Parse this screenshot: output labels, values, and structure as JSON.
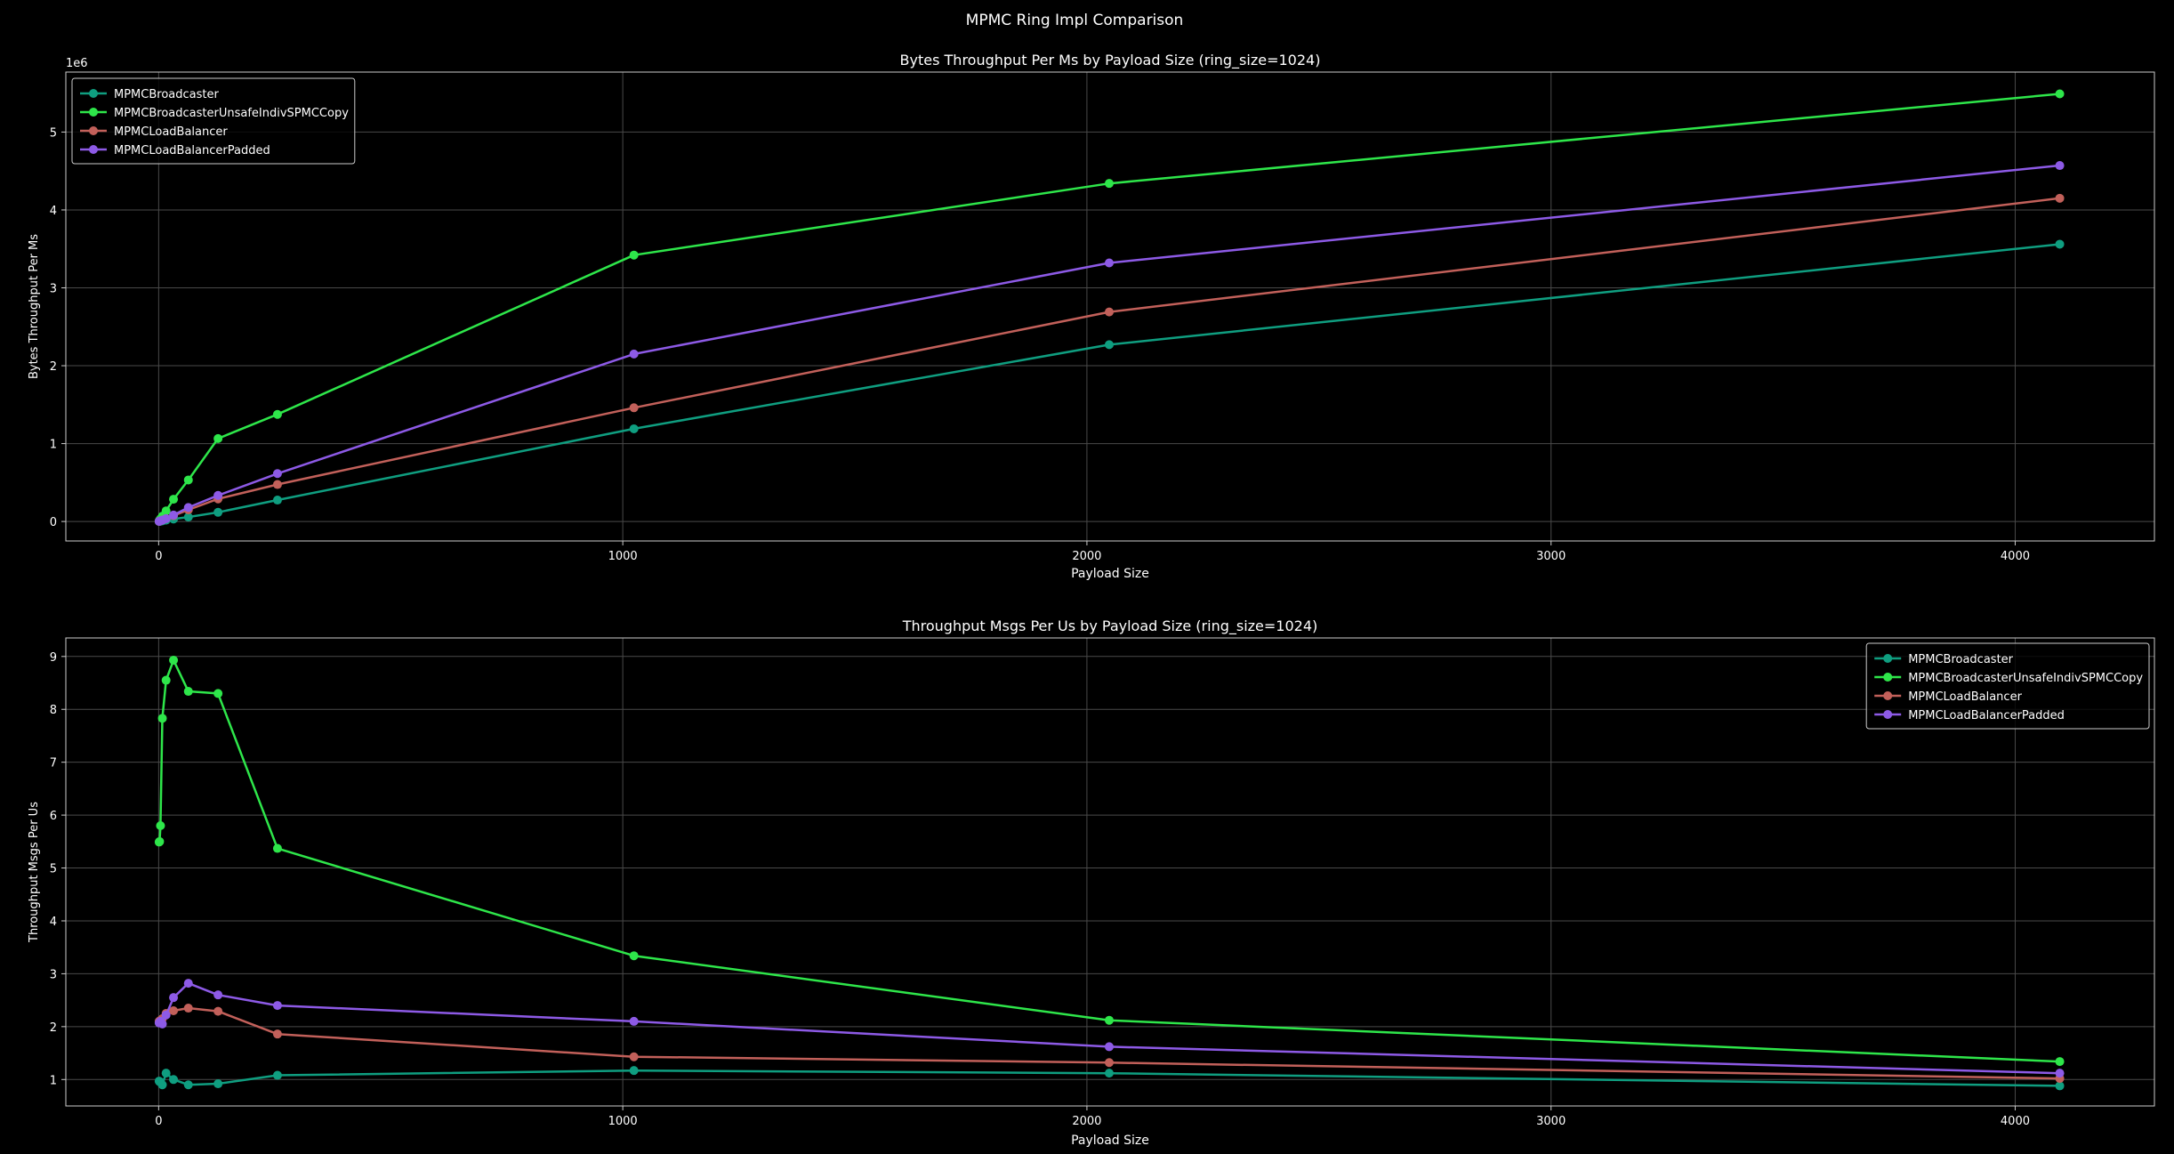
{
  "suptitle": "MPMC Ring Impl Comparison",
  "chart_data": [
    {
      "type": "line",
      "title": "Bytes Throughput Per Ms by Payload Size (ring_size=1024)",
      "xlabel": "Payload Size",
      "ylabel": "Bytes Throughput Per Ms",
      "y_offset_label": "1e6",
      "xlim": [
        -200,
        4300
      ],
      "ylim": [
        -0.25,
        5.77
      ],
      "xticks": [
        0,
        1000,
        2000,
        3000,
        4000
      ],
      "yticks": [
        0,
        1,
        2,
        3,
        4,
        5
      ],
      "grid": true,
      "legend_position": "top-left",
      "x": [
        1,
        2,
        4,
        8,
        16,
        32,
        64,
        128,
        256,
        1024,
        2048,
        4096
      ],
      "series": [
        {
          "name": "MPMCBroadcaster",
          "color": "#0f9e80",
          "values": [
            0.001,
            0.002,
            0.004,
            0.008,
            0.017,
            0.032,
            0.057,
            0.118,
            0.275,
            1.19,
            2.27,
            3.56
          ]
        },
        {
          "name": "MPMCBroadcasterUnsafeIndivSPMCCopy",
          "color": "#2ee64a",
          "values": [
            0.006,
            0.016,
            0.034,
            0.068,
            0.136,
            0.286,
            0.533,
            1.065,
            1.375,
            3.42,
            4.34,
            5.49
          ]
        },
        {
          "name": "MPMCLoadBalancer",
          "color": "#c2605a",
          "values": [
            0.002,
            0.004,
            0.009,
            0.018,
            0.037,
            0.074,
            0.15,
            0.29,
            0.475,
            1.46,
            2.69,
            4.15
          ]
        },
        {
          "name": "MPMCLoadBalancerPadded",
          "color": "#8d5ae6",
          "values": [
            0.002,
            0.004,
            0.009,
            0.018,
            0.037,
            0.082,
            0.18,
            0.335,
            0.615,
            2.15,
            3.32,
            4.57
          ]
        }
      ]
    },
    {
      "type": "line",
      "title": "Throughput Msgs Per Us by Payload Size (ring_size=1024)",
      "xlabel": "Payload Size",
      "ylabel": "Throughput Msgs Per Us",
      "xlim": [
        -200,
        4300
      ],
      "ylim": [
        0.5,
        9.35
      ],
      "xticks": [
        0,
        1000,
        2000,
        3000,
        4000
      ],
      "yticks": [
        1,
        2,
        3,
        4,
        5,
        6,
        7,
        8,
        9
      ],
      "grid": true,
      "legend_position": "top-right",
      "x": [
        1,
        2,
        4,
        8,
        16,
        32,
        64,
        128,
        256,
        1024,
        2048,
        4096
      ],
      "series": [
        {
          "name": "MPMCBroadcaster",
          "color": "#0f9e80",
          "values": [
            0.97,
            0.96,
            0.95,
            0.9,
            1.12,
            1.0,
            0.9,
            0.92,
            1.08,
            1.17,
            1.12,
            0.88
          ]
        },
        {
          "name": "MPMCBroadcasterUnsafeIndivSPMCCopy",
          "color": "#2ee64a",
          "values": [
            5.49,
            5.5,
            5.8,
            7.83,
            8.55,
            8.93,
            8.34,
            8.3,
            5.37,
            3.34,
            2.12,
            1.34
          ]
        },
        {
          "name": "MPMCLoadBalancer",
          "color": "#c2605a",
          "values": [
            2.1,
            2.08,
            2.12,
            2.15,
            2.25,
            2.3,
            2.35,
            2.29,
            1.86,
            1.43,
            1.32,
            1.02
          ]
        },
        {
          "name": "MPMCLoadBalancerPadded",
          "color": "#8d5ae6",
          "values": [
            2.07,
            2.08,
            2.1,
            2.05,
            2.22,
            2.55,
            2.82,
            2.6,
            2.4,
            2.1,
            1.62,
            1.12
          ]
        }
      ]
    }
  ]
}
